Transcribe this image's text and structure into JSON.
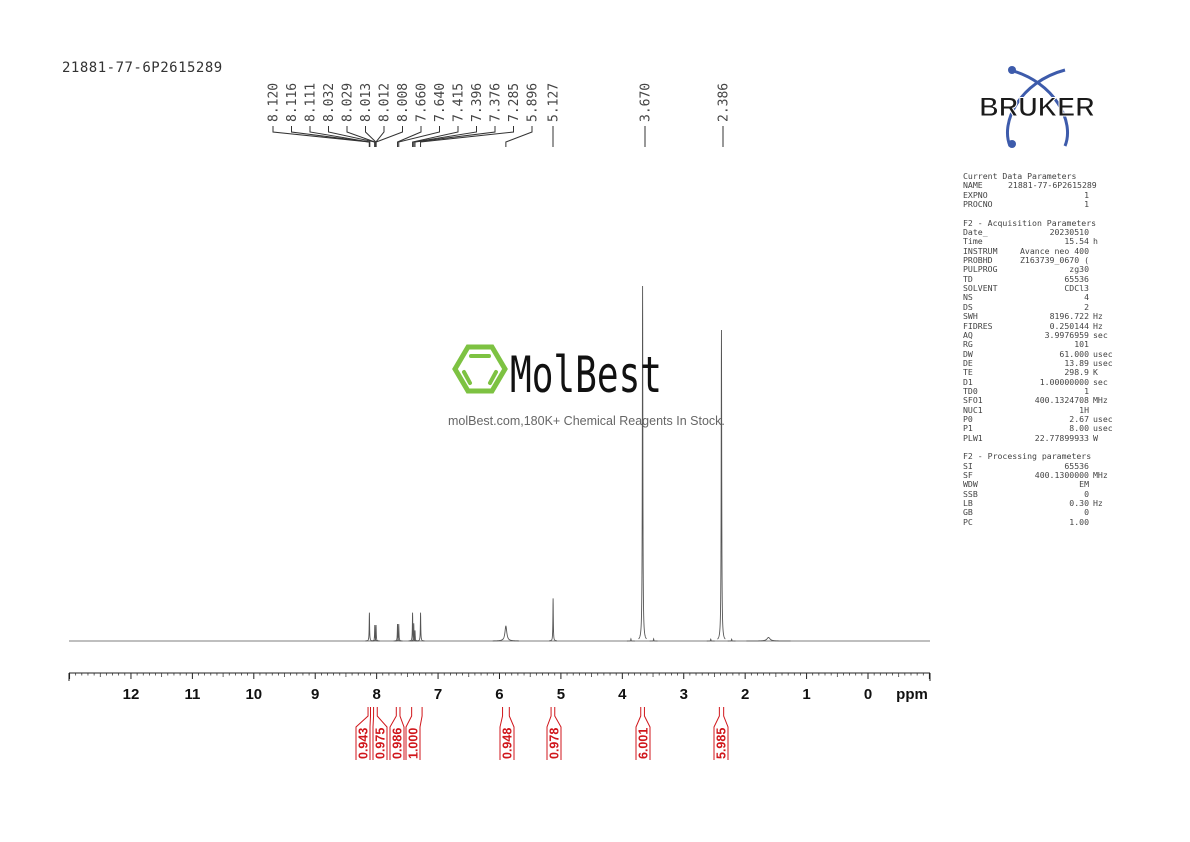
{
  "title": "21881-77-6P2615289",
  "watermark": {
    "logo_text": "MolBest",
    "tagline": "molBest.com,180K+ Chemical Reagents In Stock.",
    "logo_color": "#7dc242"
  },
  "brand_logo": {
    "text": "BRUKER",
    "color": "#1a1a1a",
    "accent": "#3d5bab"
  },
  "params": {
    "sections": [
      {
        "title": "Current Data Parameters",
        "rows": [
          {
            "name": "NAME",
            "value": "21881-77-6P2615289",
            "unit": ""
          },
          {
            "name": "EXPNO",
            "value": "1",
            "unit": ""
          },
          {
            "name": "PROCNO",
            "value": "1",
            "unit": ""
          }
        ]
      },
      {
        "title": "F2 - Acquisition Parameters",
        "rows": [
          {
            "name": "Date_",
            "value": "20230510",
            "unit": ""
          },
          {
            "name": "Time",
            "value": "15.54",
            "unit": "h"
          },
          {
            "name": "INSTRUM",
            "value": "Avance neo 400",
            "unit": ""
          },
          {
            "name": "PROBHD",
            "value": "Z163739_0670 (",
            "unit": ""
          },
          {
            "name": "PULPROG",
            "value": "zg30",
            "unit": ""
          },
          {
            "name": "TD",
            "value": "65536",
            "unit": ""
          },
          {
            "name": "SOLVENT",
            "value": "CDCl3",
            "unit": ""
          },
          {
            "name": "NS",
            "value": "4",
            "unit": ""
          },
          {
            "name": "DS",
            "value": "2",
            "unit": ""
          },
          {
            "name": "SWH",
            "value": "8196.722",
            "unit": "Hz"
          },
          {
            "name": "FIDRES",
            "value": "0.250144",
            "unit": "Hz"
          },
          {
            "name": "AQ",
            "value": "3.9976959",
            "unit": "sec"
          },
          {
            "name": "RG",
            "value": "101",
            "unit": ""
          },
          {
            "name": "DW",
            "value": "61.000",
            "unit": "usec"
          },
          {
            "name": "DE",
            "value": "13.89",
            "unit": "usec"
          },
          {
            "name": "TE",
            "value": "298.9",
            "unit": "K"
          },
          {
            "name": "D1",
            "value": "1.00000000",
            "unit": "sec"
          },
          {
            "name": "TD0",
            "value": "1",
            "unit": ""
          },
          {
            "name": "SFO1",
            "value": "400.1324708",
            "unit": "MHz"
          },
          {
            "name": "NUC1",
            "value": "1H",
            "unit": ""
          },
          {
            "name": "P0",
            "value": "2.67",
            "unit": "usec"
          },
          {
            "name": "P1",
            "value": "8.00",
            "unit": "usec"
          },
          {
            "name": "PLW1",
            "value": "22.77899933",
            "unit": "W"
          }
        ]
      },
      {
        "title": "F2 - Processing parameters",
        "rows": [
          {
            "name": "SI",
            "value": "65536",
            "unit": ""
          },
          {
            "name": "SF",
            "value": "400.1300000",
            "unit": "MHz"
          },
          {
            "name": "WDW",
            "value": "EM",
            "unit": ""
          },
          {
            "name": "SSB",
            "value": "0",
            "unit": ""
          },
          {
            "name": "LB",
            "value": "0.30",
            "unit": "Hz"
          },
          {
            "name": "GB",
            "value": "0",
            "unit": ""
          },
          {
            "name": "PC",
            "value": "1.00",
            "unit": ""
          }
        ]
      }
    ]
  },
  "chart_data": {
    "type": "line",
    "subtype": "1H NMR spectrum",
    "xlabel": "ppm",
    "xlim": [
      13,
      -1
    ],
    "x_reversed": true,
    "x_ticks": [
      "12",
      "11",
      "10",
      "9",
      "8",
      "7",
      "6",
      "5",
      "4",
      "3",
      "2",
      "1",
      "0"
    ],
    "grid": false,
    "line_color": "#555555",
    "integral_color": "#d0161b",
    "peak_labels": [
      "8.120",
      "8.116",
      "8.111",
      "8.032",
      "8.029",
      "8.013",
      "8.012",
      "8.008",
      "7.660",
      "7.640",
      "7.415",
      "7.396",
      "7.376",
      "7.285",
      "5.896",
      "5.127",
      "3.670",
      "2.386"
    ],
    "peaks": [
      {
        "ppm": 8.118,
        "height": 0.08,
        "width": 0.004
      },
      {
        "ppm": 8.03,
        "height": 0.045,
        "width": 0.004
      },
      {
        "ppm": 8.01,
        "height": 0.045,
        "width": 0.004
      },
      {
        "ppm": 7.66,
        "height": 0.048,
        "width": 0.004
      },
      {
        "ppm": 7.64,
        "height": 0.048,
        "width": 0.004
      },
      {
        "ppm": 7.415,
        "height": 0.08,
        "width": 0.004
      },
      {
        "ppm": 7.396,
        "height": 0.05,
        "width": 0.004
      },
      {
        "ppm": 7.376,
        "height": 0.03,
        "width": 0.004
      },
      {
        "ppm": 7.285,
        "height": 0.08,
        "width": 0.004
      },
      {
        "ppm": 5.896,
        "height": 0.042,
        "width": 0.018
      },
      {
        "ppm": 5.127,
        "height": 0.12,
        "width": 0.004
      },
      {
        "ppm": 3.67,
        "height": 1.0,
        "width": 0.005
      },
      {
        "ppm": 2.386,
        "height": 0.876,
        "width": 0.005
      },
      {
        "ppm": 3.86,
        "height": 0.006,
        "width": 0.004
      },
      {
        "ppm": 3.49,
        "height": 0.006,
        "width": 0.004
      },
      {
        "ppm": 2.56,
        "height": 0.005,
        "width": 0.004
      },
      {
        "ppm": 2.22,
        "height": 0.005,
        "width": 0.004
      },
      {
        "ppm": 1.62,
        "height": 0.01,
        "width": 0.03
      }
    ],
    "integrals": [
      {
        "from": 8.14,
        "to": 8.1,
        "value": "0.943"
      },
      {
        "from": 8.05,
        "to": 7.99,
        "value": "0.975"
      },
      {
        "from": 7.68,
        "to": 7.62,
        "value": "0.986"
      },
      {
        "from": 7.43,
        "to": 7.26,
        "value": "1.000"
      },
      {
        "from": 5.95,
        "to": 5.84,
        "value": "0.948"
      },
      {
        "from": 5.16,
        "to": 5.1,
        "value": "0.978"
      },
      {
        "from": 3.7,
        "to": 3.64,
        "value": "6.001"
      },
      {
        "from": 2.42,
        "to": 2.35,
        "value": "5.985"
      }
    ]
  }
}
